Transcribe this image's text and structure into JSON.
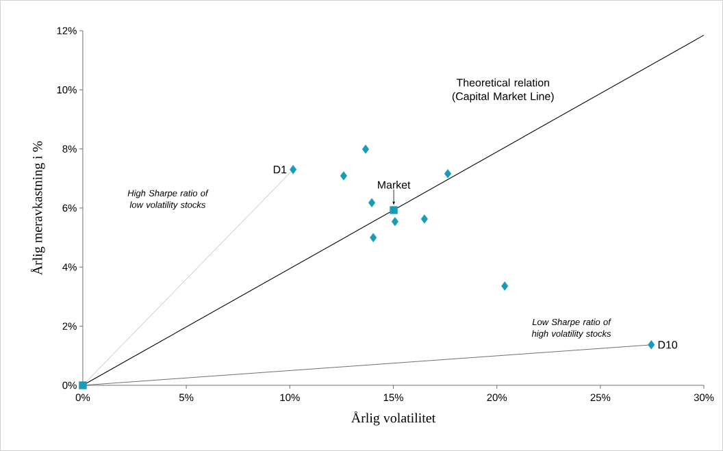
{
  "chart_data": {
    "type": "scatter",
    "xlabel": "Årlig volatilitet",
    "ylabel": "Årlig meravkastning i %",
    "xlim": [
      0,
      30
    ],
    "ylim": [
      0,
      12
    ],
    "xticks": [
      {
        "value": 0,
        "label": "0%"
      },
      {
        "value": 5,
        "label": "5%"
      },
      {
        "value": 10,
        "label": "10%"
      },
      {
        "value": 15,
        "label": "15%"
      },
      {
        "value": 20,
        "label": "20%"
      },
      {
        "value": 25,
        "label": "25%"
      },
      {
        "value": 30,
        "label": "30%"
      }
    ],
    "yticks": [
      {
        "value": 0,
        "label": "0%"
      },
      {
        "value": 2,
        "label": "2%"
      },
      {
        "value": 4,
        "label": "4%"
      },
      {
        "value": 6,
        "label": "6%"
      },
      {
        "value": 8,
        "label": "8%"
      },
      {
        "value": 10,
        "label": "10%"
      },
      {
        "value": 12,
        "label": "12%"
      }
    ],
    "grid": false,
    "series": [
      {
        "type": "line",
        "color": "#b4b4b4",
        "x": [
          0,
          10.16
        ],
        "values": [
          0,
          7.3
        ],
        "marker": "none"
      },
      {
        "type": "line",
        "color": "#4a4a4a",
        "x": [
          0,
          27.46
        ],
        "values": [
          0,
          1.37
        ],
        "marker": "none"
      },
      {
        "type": "line",
        "color": "#000000",
        "x": [
          0,
          30
        ],
        "values": [
          0,
          11.85
        ],
        "marker": "none"
      },
      {
        "type": "scatter",
        "color": "#1a9bb5",
        "marker": "diamond",
        "x": [
          10.16,
          12.6,
          13.66,
          13.96,
          14.03,
          15.08,
          16.5,
          17.63,
          20.38,
          27.46
        ],
        "values": [
          7.3,
          7.09,
          7.99,
          6.18,
          5.0,
          5.54,
          5.63,
          7.16,
          3.36,
          1.37
        ]
      },
      {
        "type": "scatter",
        "color": "#1a9bb5",
        "marker": "square",
        "x": [
          0,
          15.02
        ],
        "values": [
          0,
          5.93
        ]
      }
    ],
    "annotations": [
      "D1",
      {
        "text": "Market",
        "x": 15.02,
        "y": 5.93
      },
      "D10",
      "Theoretical relation (Capital Market Line)",
      "*High Sharpe ratio of low volatility stocks*",
      "*Low Sharpe ratio of high volatility stocks*"
    ]
  }
}
